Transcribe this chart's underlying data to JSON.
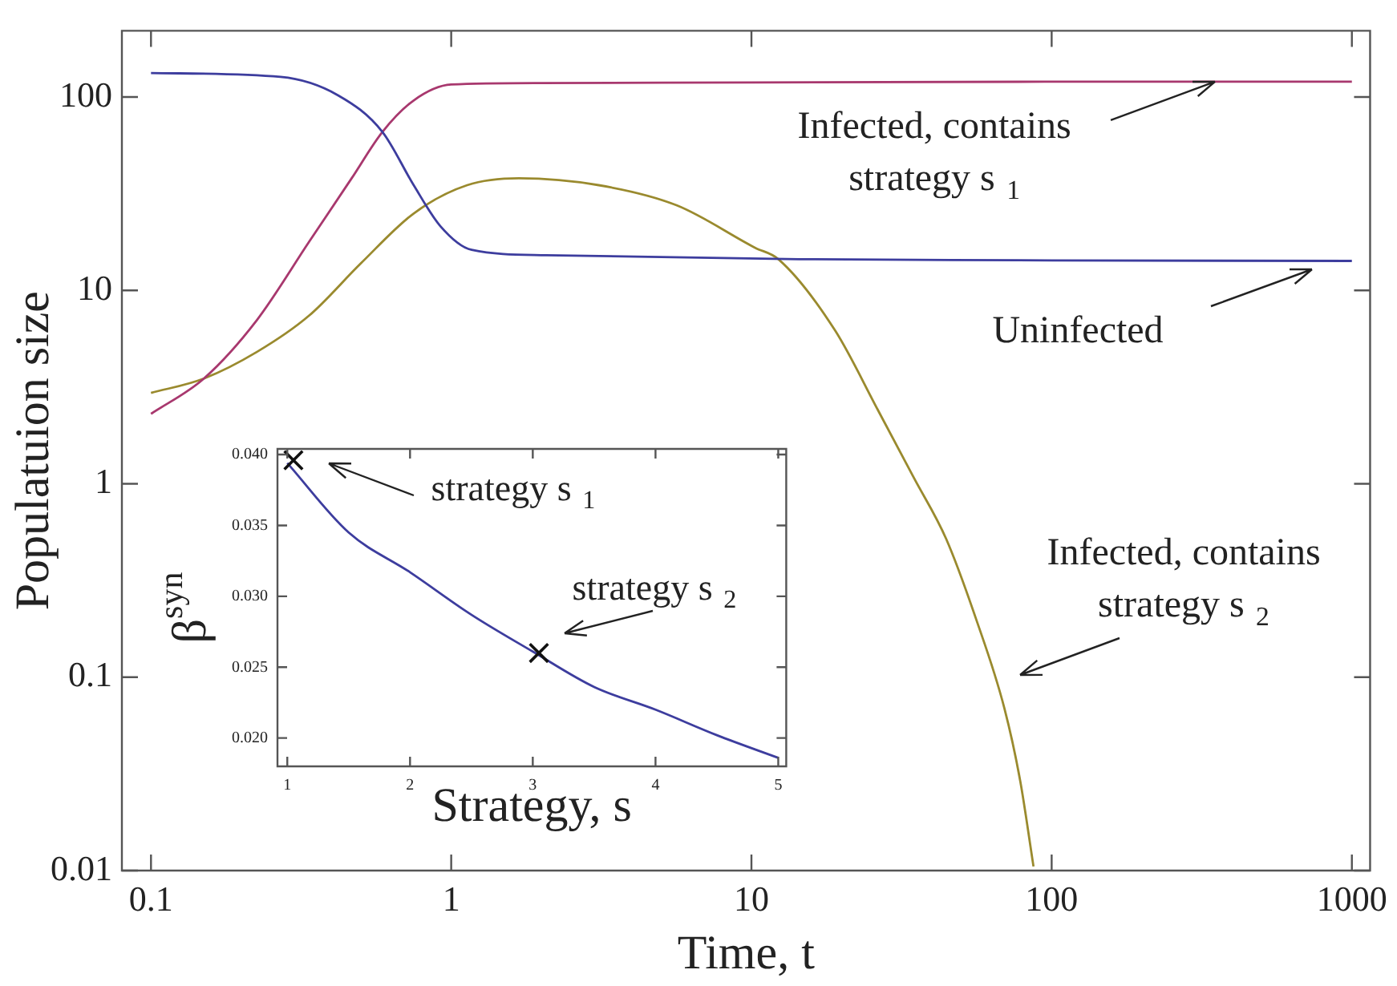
{
  "chart_data": [
    {
      "type": "line",
      "xlabel": "Time, t",
      "ylabel": "Populatuion size",
      "log": "xy",
      "xlim": [
        0.08,
        1150
      ],
      "ylim": [
        0.01,
        220
      ],
      "xticks": [
        0.1,
        1,
        10,
        100,
        1000
      ],
      "yticks": [
        0.01,
        0.1,
        1,
        10,
        100
      ],
      "series": [
        {
          "color": "#3d3d9e",
          "x": [
            0.1,
            0.27,
            0.42,
            0.59,
            0.75,
            0.92,
            1.17,
            2.07,
            14.4,
            100,
            1000
          ],
          "values": [
            133,
            127,
            102,
            66,
            35,
            21.5,
            16.2,
            15.2,
            14.5,
            14.3,
            14.2
          ]
        },
        {
          "color": "#a8386e",
          "x": [
            0.1,
            0.15,
            0.225,
            0.336,
            0.466,
            0.59,
            0.75,
            1.0,
            2,
            10,
            100,
            1000
          ],
          "values": [
            2.3,
            3.5,
            7,
            17.8,
            38,
            66,
            96,
            116,
            118,
            119,
            120,
            120
          ]
        },
        {
          "color": "#9a8a2e",
          "x": [
            0.1,
            0.15,
            0.225,
            0.336,
            0.5,
            0.75,
            1.13,
            1.68,
            3.1,
            5.65,
            10.3,
            12.3,
            19,
            26.4,
            34.8,
            44.5,
            56,
            69.6,
            78.6,
            87
          ],
          "values": [
            2.95,
            3.5,
            4.8,
            7.4,
            13.8,
            25,
            35,
            38,
            35,
            27.5,
            16.6,
            14.5,
            6.2,
            2.4,
            1.07,
            0.52,
            0.2,
            0.069,
            0.029,
            0.0105
          ]
        }
      ],
      "annotations": [
        {
          "text": "Infected, contains strategy s$_{1}$",
          "x": 350,
          "y": 120
        },
        "Uninfected",
        "Infected, contains strategy s$_{2}$"
      ]
    },
    {
      "type": "line",
      "xlabel": "Strategy, s",
      "ylabel": "β$^{syn}$",
      "xlim": [
        0.92,
        5.065
      ],
      "ylim": [
        0.018,
        0.0404
      ],
      "xticks": [
        1,
        2,
        3,
        4,
        5
      ],
      "yticks": [
        {
          "value": 0.02,
          "label": "0.020"
        },
        {
          "value": 0.025,
          "label": "0.025"
        },
        {
          "value": 0.03,
          "label": "0.030"
        },
        {
          "value": 0.035,
          "label": "0.035"
        },
        {
          "value": 0.04,
          "label": "0.040"
        }
      ],
      "series": [
        {
          "color": "#3d3d9e",
          "x": [
            1,
            1.5,
            2,
            2.5,
            3,
            3.5,
            4,
            4.5,
            5
          ],
          "values": [
            0.0394,
            0.0345,
            0.0317,
            0.0287,
            0.0261,
            0.0236,
            0.022,
            0.0202,
            0.0186
          ]
        },
        {
          "type": "scatter",
          "marker": "cross",
          "color": "#111111",
          "x": [
            1.05,
            3.05
          ],
          "values": [
            0.0396,
            0.026
          ]
        }
      ],
      "annotations": [
        "strategy s$_{1}$",
        "strategy s$_{2}$"
      ]
    }
  ]
}
